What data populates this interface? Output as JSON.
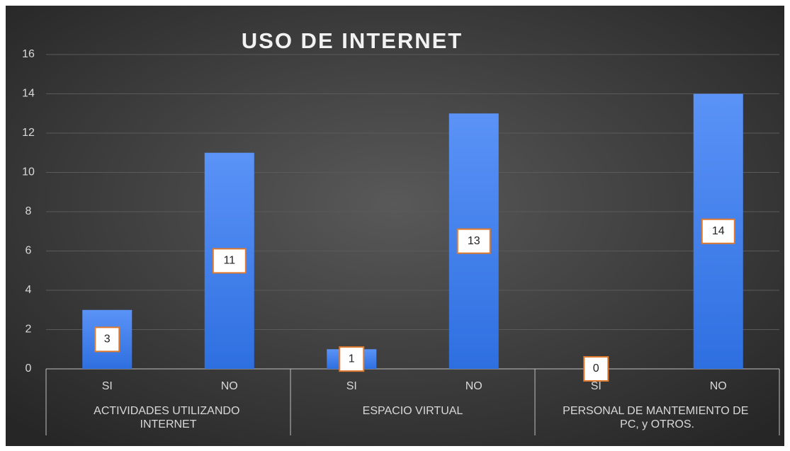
{
  "chart_data": {
    "type": "bar",
    "title": "USO DE INTERNET",
    "groups": [
      {
        "name": "ACTIVIDADES UTILIZANDO INTERNET",
        "categories": [
          "SI",
          "NO"
        ],
        "values": [
          3,
          11
        ]
      },
      {
        "name": "ESPACIO VIRTUAL",
        "categories": [
          "SI",
          "NO"
        ],
        "values": [
          1,
          13
        ]
      },
      {
        "name": "PERSONAL DE MANTEMIENTO DE PC, y OTROS.",
        "categories": [
          "SI",
          "NO"
        ],
        "values": [
          0,
          14
        ]
      }
    ],
    "color": "#3c85f0",
    "ylim": [
      0,
      16
    ],
    "yticks": [
      0,
      2,
      4,
      6,
      8,
      10,
      12,
      14,
      16
    ],
    "grid": true
  }
}
